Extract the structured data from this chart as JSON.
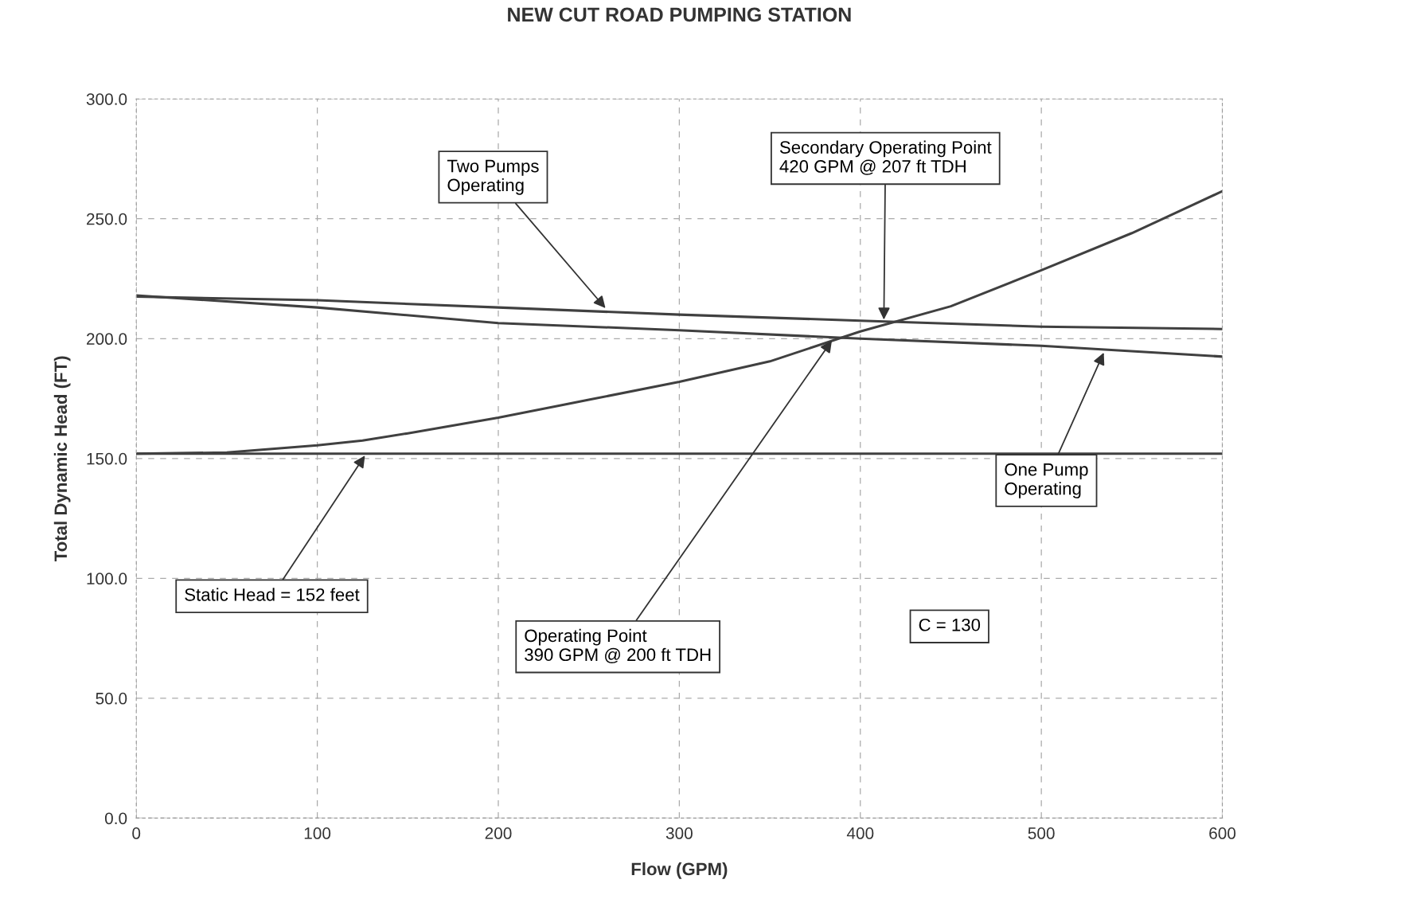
{
  "chart_data": {
    "type": "line",
    "title": "NEW CUT ROAD PUMPING STATION",
    "xlabel": "Flow (GPM)",
    "ylabel": "Total Dynamic Head (FT)",
    "xlim": [
      0,
      600
    ],
    "ylim": [
      0,
      300
    ],
    "xticks": [
      0,
      100,
      200,
      300,
      400,
      500,
      600
    ],
    "yticks": [
      {
        "value": 0,
        "label": "0.0"
      },
      {
        "value": 50,
        "label": "50.0"
      },
      {
        "value": 100,
        "label": "100.0"
      },
      {
        "value": 150,
        "label": "150.0"
      },
      {
        "value": 200,
        "label": "200.0"
      },
      {
        "value": 250,
        "label": "250.0"
      },
      {
        "value": 300,
        "label": "300.0"
      }
    ],
    "grid": true,
    "legend": false,
    "marker": "none",
    "line_style": "solid",
    "series": [
      {
        "color": "#404040",
        "x": [
          0,
          50,
          100,
          125,
          150,
          200,
          250,
          300,
          350,
          400,
          450,
          500,
          550,
          600
        ],
        "values": [
          152,
          152.5,
          155.5,
          157.5,
          160.5,
          167,
          174.5,
          182,
          190.5,
          203,
          213.5,
          228.5,
          244,
          261.5
        ]
      },
      {
        "color": "#404040",
        "x": [
          0,
          100,
          200,
          300,
          400,
          500,
          600
        ],
        "values": [
          217.5,
          216,
          213,
          210,
          207.5,
          205,
          204
        ]
      },
      {
        "color": "#404040",
        "x": [
          0,
          100,
          200,
          300,
          400,
          500,
          600
        ],
        "values": [
          218,
          213,
          206.5,
          203.5,
          200,
          197,
          192.5
        ]
      }
    ],
    "ref_lines": [
      {
        "axis": "y",
        "value": 152,
        "color": "#404040"
      }
    ],
    "annotations": [
      {
        "text": "Two Pumps\nOperating",
        "x": 260,
        "y": 212
      },
      {
        "text": "Secondary Operating Point\n420 GPM @ 207 ft TDH",
        "x": 413,
        "y": 207
      },
      {
        "text": "One Pump\nOperating",
        "x": 535,
        "y": 195
      },
      {
        "text": "Static Head = 152 feet",
        "x": 127,
        "y": 152
      },
      {
        "text": "Operating Point\n390 GPM @ 200 ft TDH",
        "x": 385,
        "y": 200
      },
      "C = 130"
    ]
  }
}
